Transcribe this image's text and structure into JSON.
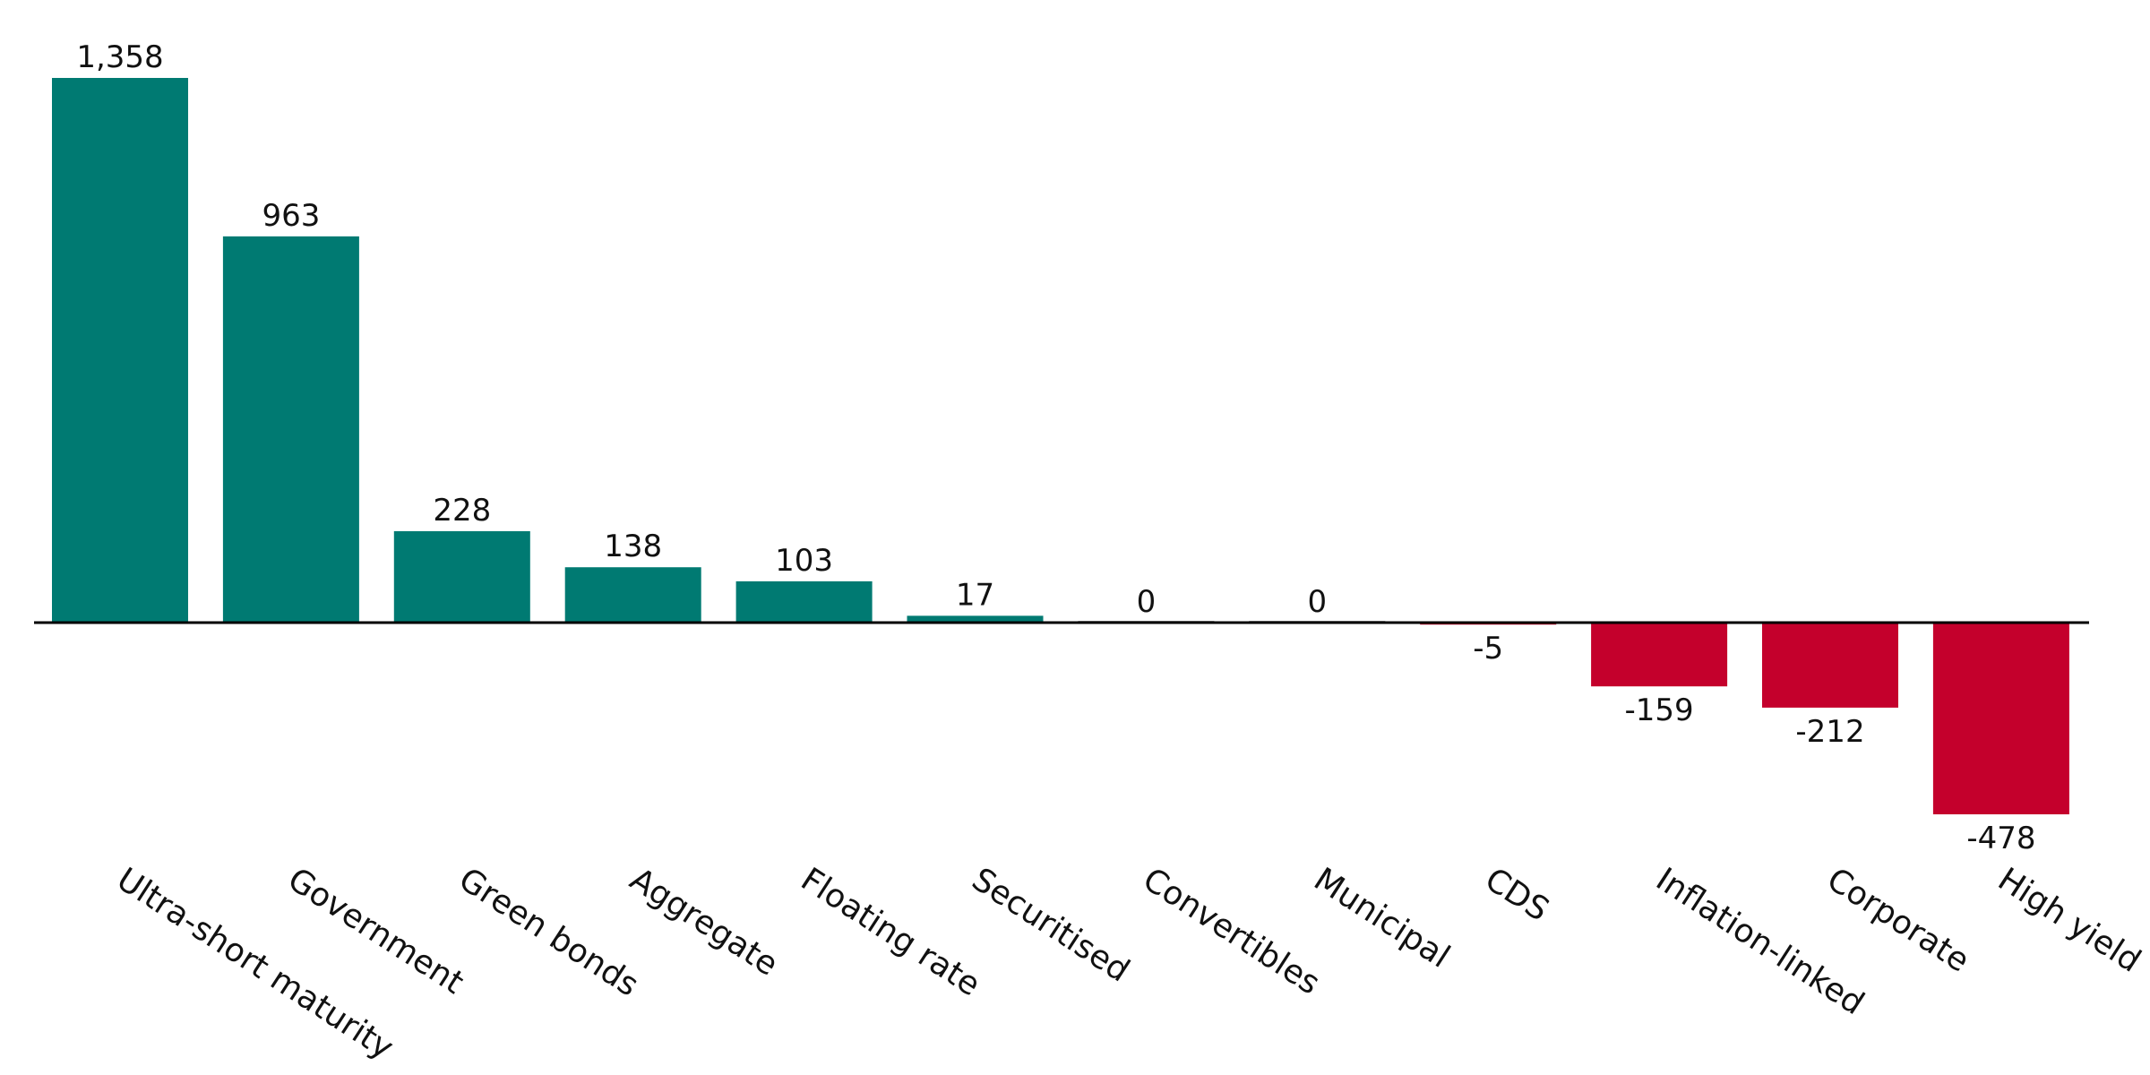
{
  "chart_data": {
    "type": "bar",
    "categories": [
      "Ultra-short maturity",
      "Government",
      "Green bonds",
      "Aggregate",
      "Floating rate",
      "Securitised",
      "Convertibles",
      "Municipal",
      "CDS",
      "Inflation-linked",
      "Corporate",
      "High yield"
    ],
    "values": [
      1358,
      963,
      228,
      138,
      103,
      17,
      0,
      0,
      -5,
      -159,
      -212,
      -478
    ],
    "value_labels": [
      "1,358",
      "963",
      "228",
      "138",
      "103",
      "17",
      "0",
      "0",
      "-5",
      "-159",
      "-212",
      "-478"
    ],
    "title": "",
    "xlabel": "",
    "ylabel": "",
    "ylim": [
      -478,
      1358
    ],
    "grid": false,
    "legend": "none",
    "colors": {
      "positive": "#007a72",
      "negative": "#c4002c",
      "zero_line": "#000000",
      "zero_bar": "#9a9a9a"
    }
  }
}
